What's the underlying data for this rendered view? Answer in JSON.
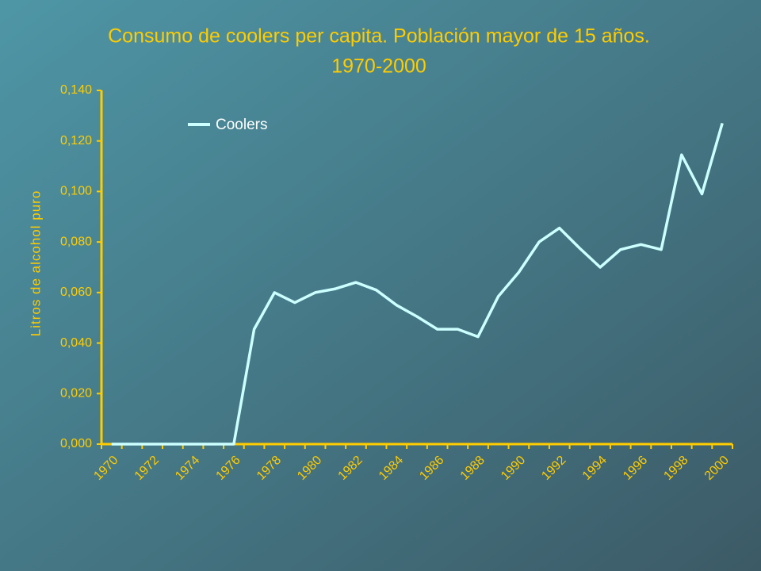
{
  "chart_data": {
    "type": "line",
    "title": "Consumo de coolers per capita. Población mayor de 15 años.",
    "subtitle": "1970-2000",
    "y_label": "Litros de alcohol puro",
    "categories": [
      "1970",
      null,
      "1972",
      null,
      "1974",
      null,
      "1976",
      null,
      "1978",
      null,
      "1980",
      null,
      "1982",
      null,
      "1984",
      null,
      "1986",
      null,
      "1988",
      null,
      "1990",
      null,
      "1992",
      null,
      "1994",
      null,
      "1996",
      null,
      "1998",
      null,
      "2000"
    ],
    "series": [
      {
        "name": "Coolers",
        "color": "#ccffff",
        "values": [
          0,
          0,
          0,
          0,
          0,
          0,
          0,
          0.0455,
          0.06,
          0.056,
          0.06,
          0.0615,
          0.064,
          0.061,
          0.055,
          0.0505,
          0.0455,
          0.0455,
          0.0425,
          0.0585,
          0.068,
          0.08,
          0.0855,
          0.0775,
          0.07,
          0.077,
          0.079,
          0.077,
          0.1145,
          0.099,
          0.127
        ]
      }
    ],
    "ylim": [
      0,
      0.14
    ],
    "yticks": [
      {
        "value": 0,
        "label": "0,000"
      },
      {
        "value": 0.02,
        "label": "0,020"
      },
      {
        "value": 0.04,
        "label": "0,040"
      },
      {
        "value": 0.06,
        "label": "0,060"
      },
      {
        "value": 0.08,
        "label": "0,080"
      },
      {
        "value": 0.1,
        "label": "0,100"
      },
      {
        "value": 0.12,
        "label": "0,120"
      },
      {
        "value": 0.14,
        "label": "0,140"
      }
    ],
    "legend": "top-left",
    "axis_color": "#ffcc00"
  }
}
